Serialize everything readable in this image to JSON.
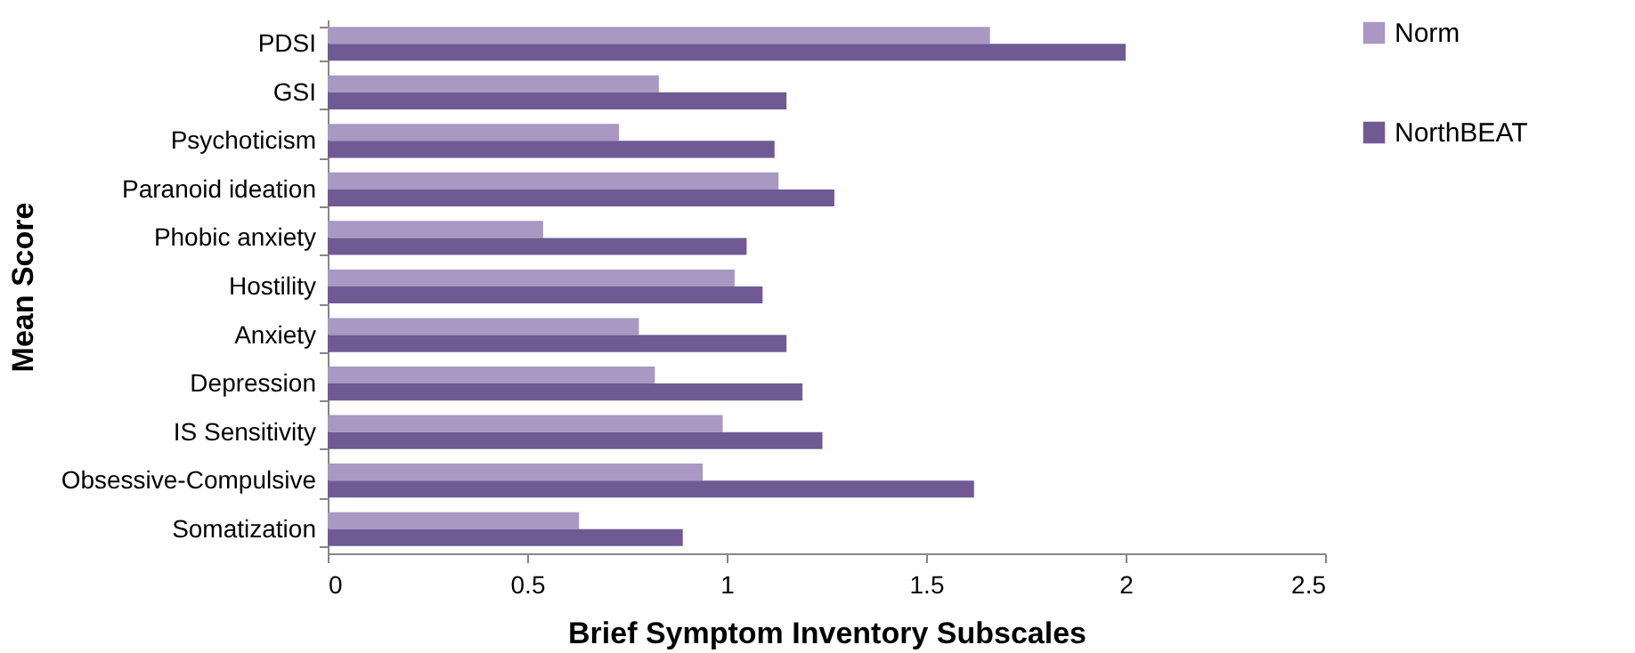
{
  "chart_data": {
    "type": "bar",
    "orientation": "horizontal",
    "xlabel": "Brief Symptom Inventory Subscales",
    "ylabel": "Mean Score",
    "categories": [
      "PDSI",
      "GSI",
      "Psychoticism",
      "Paranoid ideation",
      "Phobic anxiety",
      "Hostility",
      "Anxiety",
      "Depression",
      "IS Sensitivity",
      "Obsessive-Compulsive",
      "Somatization"
    ],
    "series": [
      {
        "name": "Norm",
        "color": "#a898c2",
        "values": [
          1.66,
          0.83,
          0.73,
          1.13,
          0.54,
          1.02,
          0.78,
          0.82,
          0.99,
          0.94,
          0.63
        ]
      },
      {
        "name": "NorthBEAT",
        "color": "#6f5a94",
        "values": [
          2.0,
          1.15,
          1.12,
          1.27,
          1.05,
          1.09,
          1.15,
          1.19,
          1.24,
          1.62,
          0.89
        ]
      }
    ],
    "xlim": [
      0,
      2.5
    ],
    "xticks": [
      0,
      0.5,
      1,
      1.5,
      2,
      2.5
    ],
    "grid": false,
    "legend": "top right"
  }
}
